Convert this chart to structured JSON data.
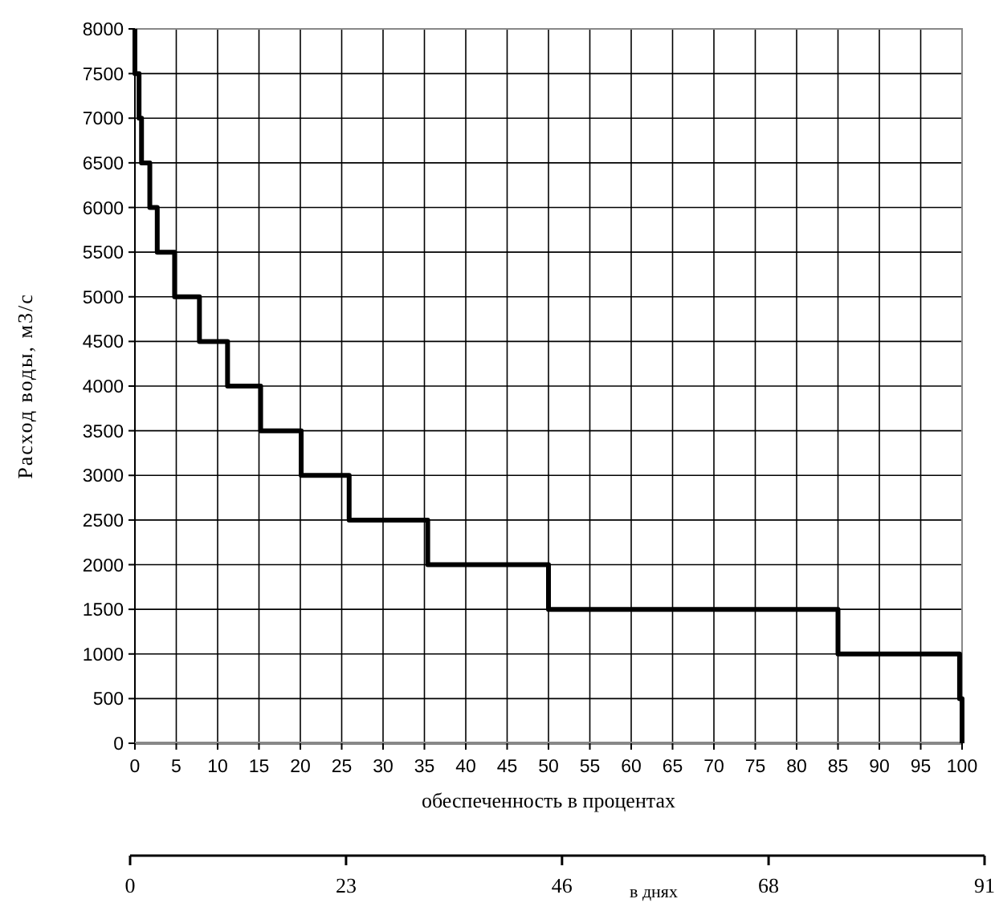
{
  "chart_data": {
    "type": "step",
    "xlabel": "обеспеченность в процентах",
    "ylabel": "Расход воды, м3/с",
    "x2label": "в днях",
    "series": [
      {
        "color": "#000000",
        "x": [
          0,
          0,
          0.5,
          0.8,
          1.8,
          2.7,
          4.8,
          7.8,
          11.2,
          15.2,
          20.1,
          25.9,
          35.4,
          50,
          85,
          99.7,
          100
        ],
        "values": [
          8000,
          7500,
          7000,
          6500,
          6000,
          5500,
          5000,
          4500,
          4000,
          3500,
          3000,
          2500,
          2000,
          1500,
          1000,
          500,
          0
        ]
      }
    ],
    "xlim": [
      0,
      100
    ],
    "xticks": [
      0,
      5,
      10,
      15,
      20,
      25,
      30,
      35,
      40,
      45,
      50,
      55,
      60,
      65,
      70,
      75,
      80,
      85,
      90,
      95,
      100
    ],
    "ylim": [
      0,
      8000
    ],
    "yticks": [
      0,
      500,
      1000,
      1500,
      2000,
      2500,
      3000,
      3500,
      4000,
      4500,
      5000,
      5500,
      6000,
      6500,
      7000,
      7500,
      8000
    ],
    "x2lim": [
      0,
      91
    ],
    "x2ticks": [
      0,
      23,
      46,
      68,
      91
    ],
    "grid": true,
    "marker": "none",
    "line_style": "solid"
  }
}
